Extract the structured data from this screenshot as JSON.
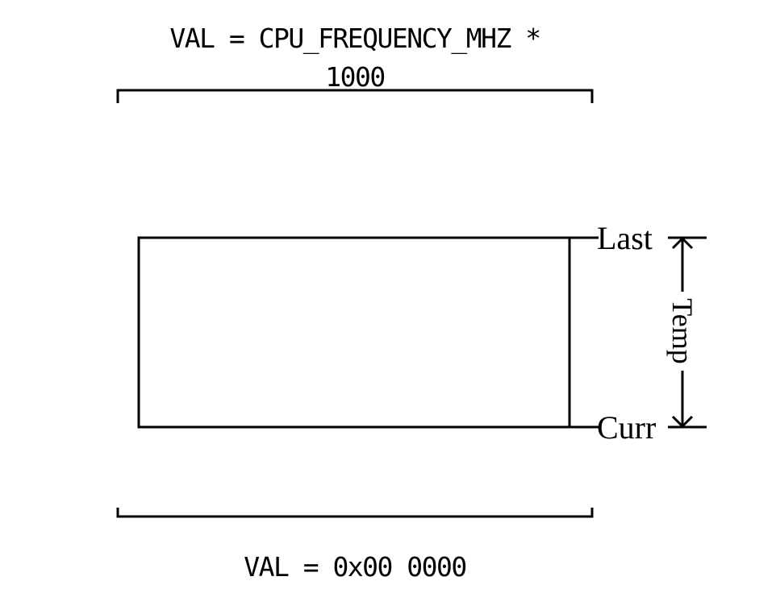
{
  "top_label": {
    "line1": "VAL = CPU_FREQUENCY_MHZ *",
    "line2": "1000"
  },
  "bottom_label": "VAL = 0x00 0000",
  "markers": {
    "last": "Last",
    "curr": "Curr",
    "span": "Temp"
  }
}
